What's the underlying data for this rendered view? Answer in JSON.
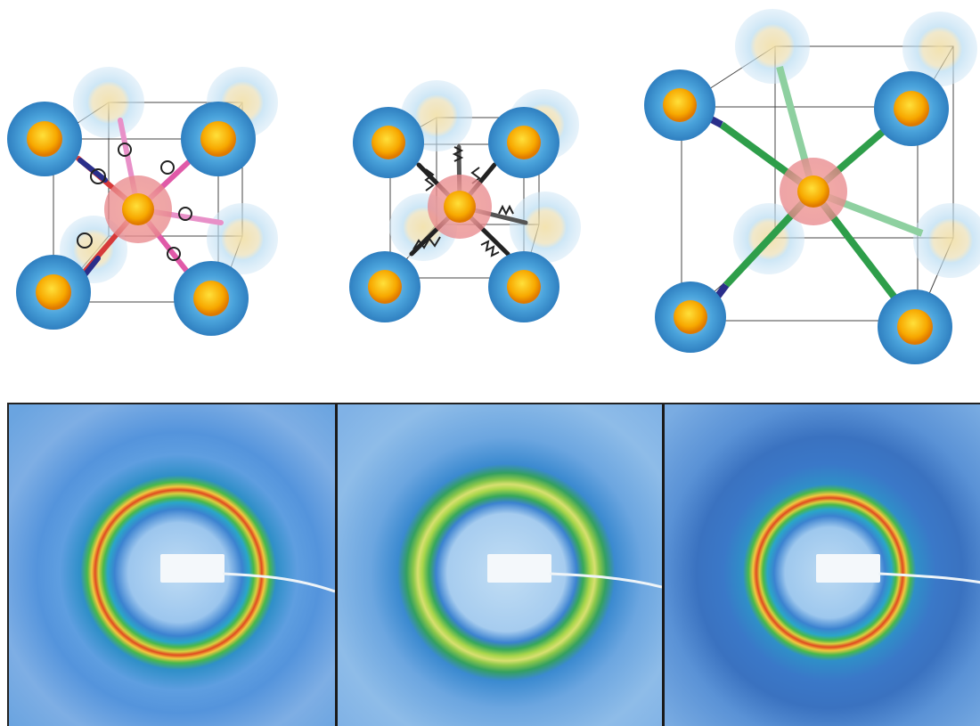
{
  "lattice_panels": [
    {
      "id": "left",
      "linker": "spring-coil",
      "linker_color": "#e040a0"
    },
    {
      "id": "middle",
      "linker": "spring",
      "linker_color": "#222222"
    },
    {
      "id": "right",
      "linker": "rigid-rod",
      "linker_color": "#2e9e4a"
    }
  ],
  "diffraction_panels": [
    {
      "id": "left",
      "ring": "red-yellow"
    },
    {
      "id": "middle",
      "ring": "green-yellow"
    },
    {
      "id": "right",
      "ring": "red-yellow"
    }
  ],
  "colors": {
    "shell_blue": "#3a93cf",
    "core_orange": "#f7a800",
    "central_pink": "#e8868a",
    "link_red": "#d63a3a",
    "link_navy": "#2a2e8a",
    "ring_green": "#38b04a",
    "ring_red": "#e04020",
    "background_blue": "#4d8fd6"
  }
}
